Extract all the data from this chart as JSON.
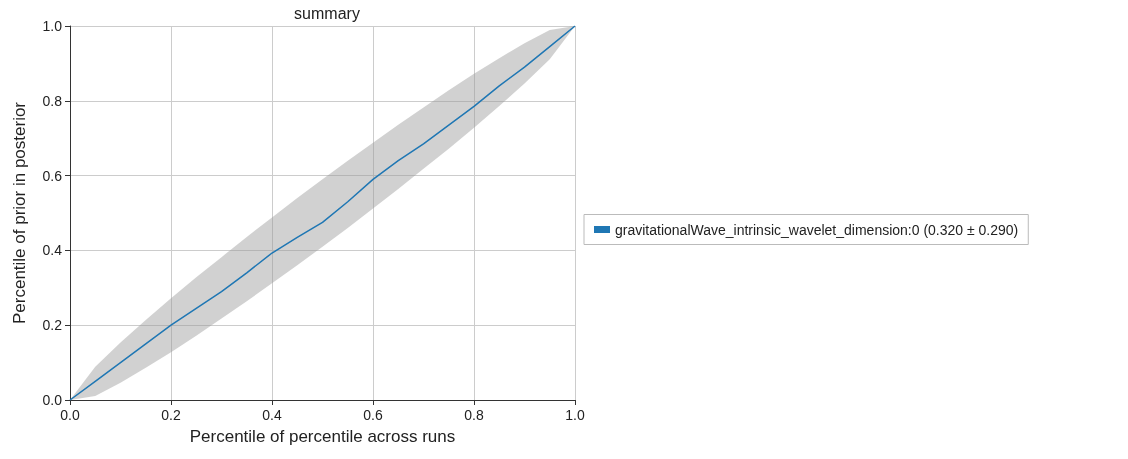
{
  "chart_data": {
    "type": "line",
    "title": "summary",
    "xlabel": "Percentile of percentile across runs",
    "ylabel": "Percentile of prior in posterior",
    "xlim": [
      0,
      1
    ],
    "ylim": [
      0,
      1
    ],
    "xticks": [
      {
        "value": 0,
        "label": "0.0"
      },
      0.2,
      0.4,
      0.6,
      0.8,
      {
        "value": 1,
        "label": "1.0"
      }
    ],
    "yticks": [
      {
        "value": 0,
        "label": "0.0"
      },
      0.2,
      0.4,
      0.6,
      0.8,
      {
        "value": 1,
        "label": "1.0"
      }
    ],
    "x": [
      0,
      0.05,
      0.1,
      0.15,
      0.2,
      0.25,
      0.3,
      0.35,
      0.4,
      0.45,
      0.5,
      0.55,
      0.6,
      0.65,
      0.7,
      0.75,
      0.8,
      0.85,
      0.9,
      0.95,
      1
    ],
    "series": [
      {
        "name": "gravitationalWave_intrinsic_wavelet_dimension:0 (0.320 ± 0.290)",
        "color": "#1f77b4",
        "values": [
          0,
          0.05,
          0.1,
          0.15,
          0.2,
          0.245,
          0.29,
          0.34,
          0.393,
          0.435,
          0.475,
          0.53,
          0.59,
          0.64,
          0.685,
          0.735,
          0.785,
          0.84,
          0.89,
          0.945,
          1
        ],
        "lower": [
          0,
          0.011,
          0.046,
          0.086,
          0.128,
          0.172,
          0.218,
          0.264,
          0.312,
          0.36,
          0.41,
          0.46,
          0.512,
          0.564,
          0.618,
          0.672,
          0.728,
          0.786,
          0.846,
          0.911,
          1
        ],
        "upper": [
          0,
          0.089,
          0.154,
          0.214,
          0.272,
          0.328,
          0.382,
          0.436,
          0.488,
          0.54,
          0.59,
          0.64,
          0.688,
          0.736,
          0.782,
          0.828,
          0.872,
          0.914,
          0.954,
          0.989,
          1
        ]
      }
    ],
    "grid": true,
    "legend": "right",
    "marker": "none",
    "line_style": "solid"
  }
}
